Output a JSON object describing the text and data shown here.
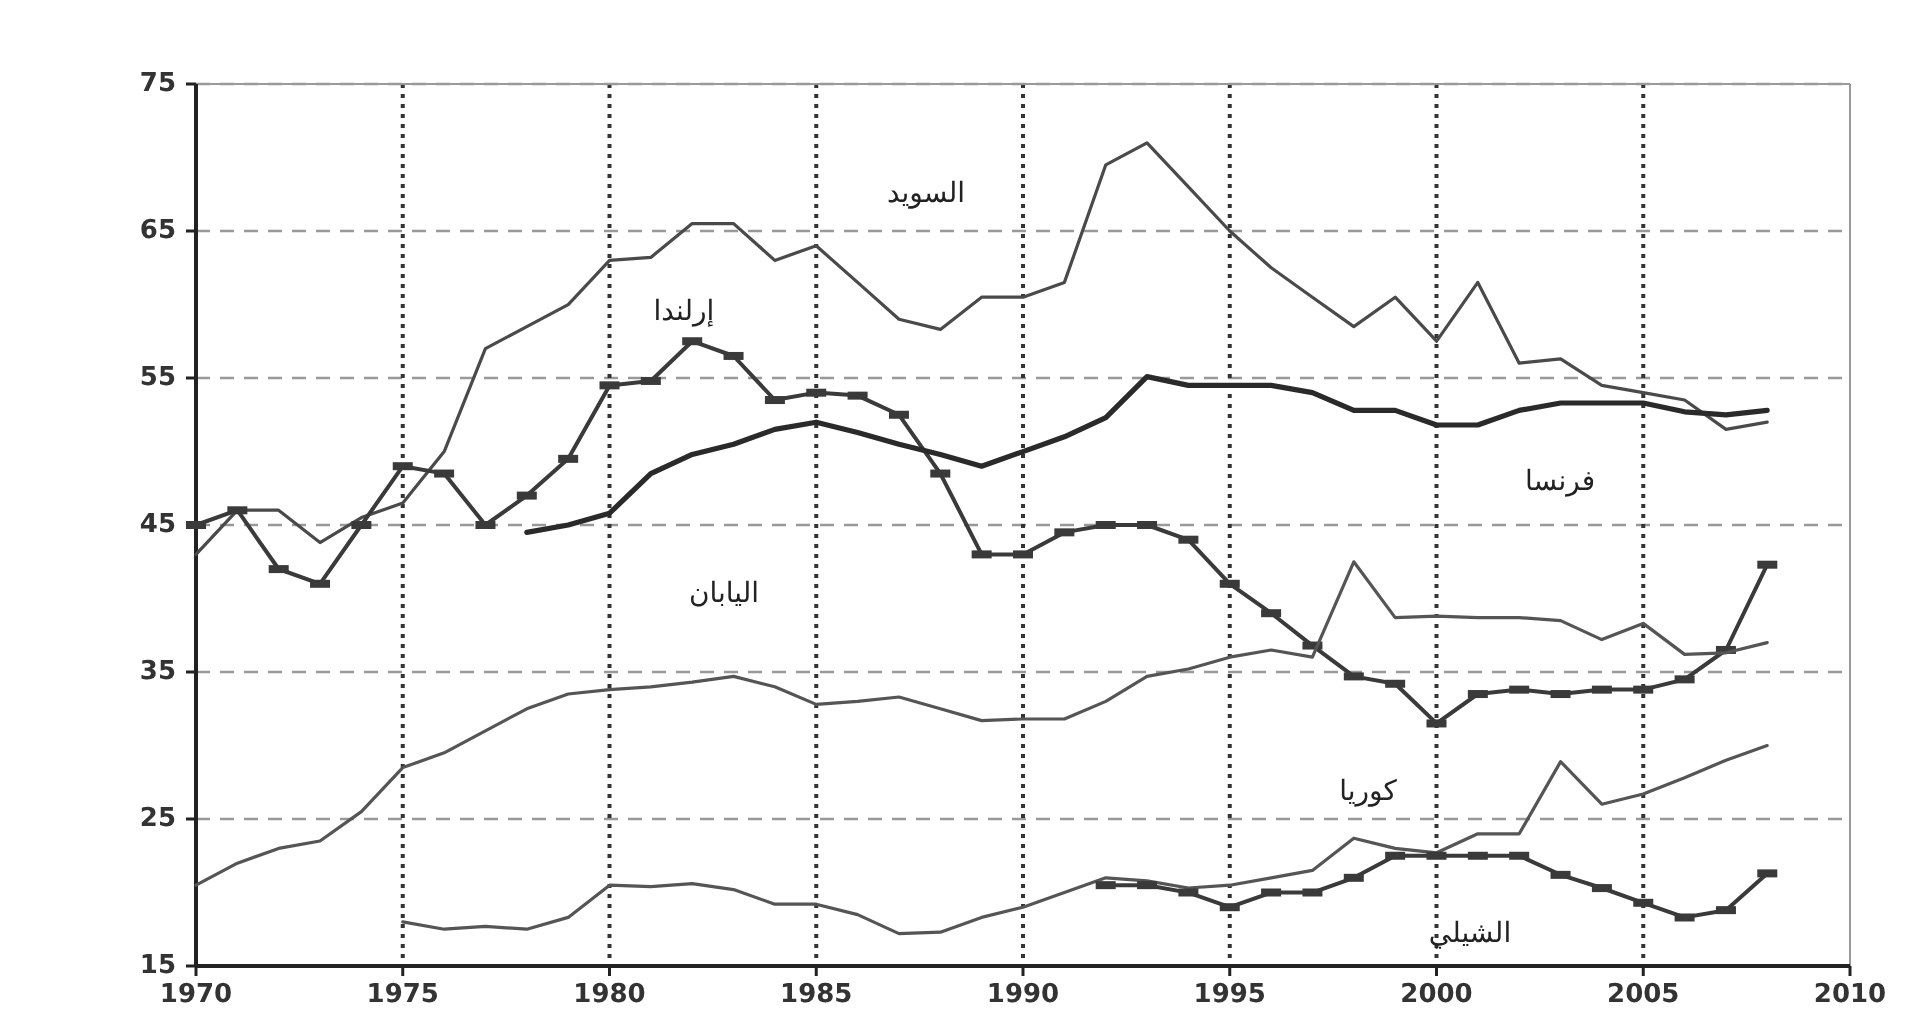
{
  "chart_data": {
    "type": "line",
    "x": [
      1970,
      1971,
      1972,
      1973,
      1974,
      1975,
      1976,
      1977,
      1978,
      1979,
      1980,
      1981,
      1982,
      1983,
      1984,
      1985,
      1986,
      1987,
      1988,
      1989,
      1990,
      1991,
      1992,
      1993,
      1994,
      1995,
      1996,
      1997,
      1998,
      1999,
      2000,
      2001,
      2002,
      2003,
      2004,
      2005,
      2006,
      2007,
      2008
    ],
    "series": [
      {
        "name": "السويد",
        "color": "#4a4a4a",
        "marker": "none",
        "values": [
          43,
          46,
          46,
          43.8,
          45.5,
          46.5,
          50,
          57,
          58.5,
          60,
          63,
          63.2,
          65.5,
          65.5,
          63,
          64,
          61.5,
          59,
          58.3,
          60.5,
          60.5,
          61.5,
          69.5,
          71,
          68,
          65,
          62.5,
          60.5,
          58.5,
          60.5,
          57.5,
          61.5,
          56,
          56.3,
          54.5,
          54,
          53.5,
          51.5,
          52
        ]
      },
      {
        "name": "إرلندا",
        "color": "#3a3a3a",
        "marker": "square",
        "values": [
          45,
          46,
          42,
          41,
          45,
          49,
          48.5,
          45,
          47,
          49.5,
          54.5,
          54.8,
          57.5,
          56.5,
          53.5,
          54,
          53.8,
          52.5,
          48.5,
          43,
          43,
          44.5,
          45,
          45,
          44,
          41,
          39,
          36.8,
          34.7,
          34.2,
          31.5,
          33.5,
          33.8,
          33.5,
          33.8,
          33.8,
          34.5,
          36.5,
          42.3
        ]
      },
      {
        "name": "فرنسا",
        "color": "#2a2a2a",
        "marker": "none",
        "values": [
          null,
          null,
          null,
          null,
          null,
          null,
          null,
          null,
          44.5,
          45,
          45.8,
          48.5,
          49.8,
          50.5,
          51.5,
          52,
          51.3,
          50.5,
          49.8,
          49,
          50,
          51,
          52.3,
          55.1,
          54.5,
          54.5,
          54.5,
          54,
          52.8,
          52.8,
          51.8,
          51.8,
          52.8,
          53.3,
          53.3,
          53.3,
          52.7,
          52.5,
          52.8
        ]
      },
      {
        "name": "اليابان",
        "color": "#555555",
        "marker": "none",
        "values": [
          20.5,
          22,
          23,
          23.5,
          25.5,
          28.5,
          29.5,
          31,
          32.5,
          33.5,
          33.8,
          34,
          34.3,
          34.7,
          34,
          32.8,
          33,
          33.3,
          32.5,
          31.7,
          31.8,
          31.8,
          33,
          34.7,
          35.2,
          36,
          36.5,
          36,
          42.5,
          38.7,
          38.8,
          38.7,
          38.7,
          38.5,
          37.2,
          38.3,
          36.2,
          36.3,
          37
        ]
      },
      {
        "name": "كوريا",
        "color": "#555555",
        "marker": "none",
        "values": [
          null,
          null,
          null,
          null,
          null,
          18,
          17.5,
          17.7,
          17.5,
          18.3,
          20.5,
          20.4,
          20.6,
          20.2,
          19.2,
          19.2,
          18.5,
          17.2,
          17.3,
          18.3,
          19,
          20,
          21,
          20.8,
          20.3,
          20.5,
          21,
          21.5,
          23.7,
          23,
          22.7,
          24,
          24,
          28.9,
          26,
          26.7,
          27.8,
          29,
          30
        ]
      },
      {
        "name": "الشيلي",
        "color": "#3a3a3a",
        "marker": "square",
        "values": [
          null,
          null,
          null,
          null,
          null,
          null,
          null,
          null,
          null,
          null,
          null,
          null,
          null,
          null,
          null,
          null,
          null,
          null,
          null,
          null,
          null,
          null,
          20.5,
          20.5,
          20,
          19,
          20,
          20,
          21,
          22.5,
          22.5,
          22.5,
          22.5,
          21.2,
          20.3,
          19.3,
          18.3,
          18.8,
          21.3
        ]
      }
    ],
    "xlim": [
      1970,
      2010
    ],
    "xticks": [
      1970,
      1975,
      1980,
      1985,
      1990,
      1995,
      2000,
      2005,
      2010
    ],
    "ylim": [
      15,
      75
    ],
    "yticks": [
      15,
      25,
      35,
      45,
      55,
      65,
      75
    ],
    "grid": true
  }
}
